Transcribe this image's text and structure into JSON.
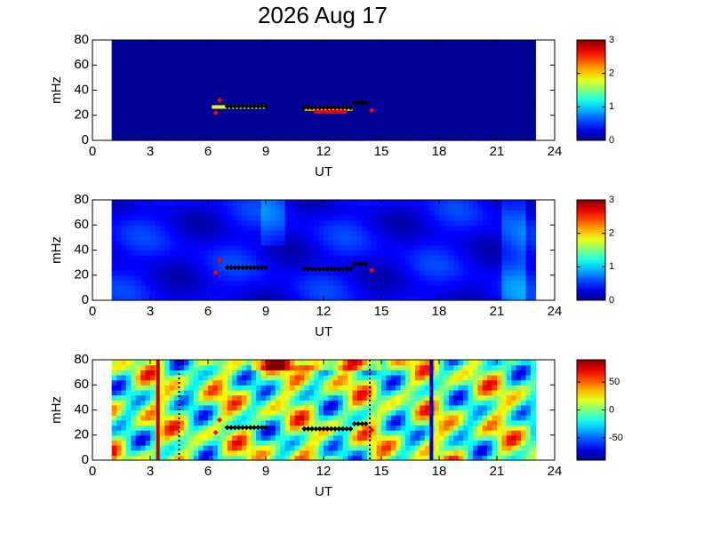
{
  "chart_data": [
    {
      "type": "spectrogram",
      "title": "2026 Aug 17",
      "xlabel": "UT",
      "ylabel": "mHz",
      "xlim": [
        0,
        24
      ],
      "xticks": [
        0,
        3,
        6,
        9,
        12,
        15,
        18,
        21,
        24
      ],
      "ylim": [
        0,
        80
      ],
      "yticks": [
        0,
        20,
        40,
        60,
        80
      ],
      "clim": [
        0,
        3
      ],
      "cticks": [
        0,
        1,
        2,
        3
      ],
      "data_xlim": [
        1,
        23
      ],
      "tracks": [
        {
          "color": "#000000",
          "x": [
            7.0,
            7.2,
            7.4,
            7.6,
            7.8,
            8.0,
            8.2,
            8.4,
            8.6,
            8.8,
            9.0,
            11.0,
            11.2,
            11.4,
            11.6,
            11.8,
            12.0,
            12.2,
            12.4,
            12.6,
            12.8,
            13.0,
            13.2,
            13.4,
            13.6,
            13.8,
            14.0,
            14.2
          ],
          "y": [
            27,
            27,
            27,
            27,
            27,
            27,
            27,
            27,
            27,
            27,
            27,
            26,
            26,
            26,
            26,
            26,
            26,
            26,
            26,
            26,
            26,
            26,
            26,
            26,
            30,
            30,
            30,
            30
          ]
        },
        {
          "color": "#ff0000",
          "x": [
            6.4,
            6.6,
            14.5
          ],
          "y": [
            22,
            32,
            24
          ]
        }
      ]
    },
    {
      "type": "spectrogram",
      "xlabel": "UT",
      "ylabel": "mHz",
      "xlim": [
        0,
        24
      ],
      "xticks": [
        0,
        3,
        6,
        9,
        12,
        15,
        18,
        21,
        24
      ],
      "ylim": [
        0,
        80
      ],
      "yticks": [
        0,
        20,
        40,
        60,
        80
      ],
      "clim": [
        0,
        3
      ],
      "cticks": [
        0,
        1,
        2,
        3
      ],
      "data_xlim": [
        1,
        23
      ],
      "tracks": [
        {
          "color": "#000000",
          "x": [
            7.0,
            7.2,
            7.4,
            7.6,
            7.8,
            8.0,
            8.2,
            8.4,
            8.6,
            8.8,
            9.0,
            11.0,
            11.2,
            11.4,
            11.6,
            11.8,
            12.0,
            12.2,
            12.4,
            12.6,
            12.8,
            13.0,
            13.2,
            13.4,
            13.6,
            13.8,
            14.0,
            14.2
          ],
          "y": [
            26,
            26,
            26,
            26,
            26,
            26,
            26,
            26,
            26,
            26,
            26,
            25,
            25,
            25,
            25,
            25,
            25,
            25,
            25,
            25,
            25,
            25,
            25,
            25,
            29,
            29,
            29,
            29
          ]
        },
        {
          "color": "#ff0000",
          "x": [
            6.4,
            6.6,
            14.5
          ],
          "y": [
            22,
            32,
            24
          ]
        }
      ]
    },
    {
      "type": "spectrogram",
      "xlabel": "UT",
      "ylabel": "mHz",
      "xlim": [
        0,
        24
      ],
      "xticks": [
        0,
        3,
        6,
        9,
        12,
        15,
        18,
        21,
        24
      ],
      "ylim": [
        0,
        80
      ],
      "yticks": [
        0,
        20,
        40,
        60,
        80
      ],
      "clim": [
        -90,
        90
      ],
      "cticks": [
        -50,
        0,
        50
      ],
      "data_xlim": [
        1,
        23
      ],
      "vlines": [
        {
          "x": 3.4,
          "color": "#c00000",
          "style": "solid"
        },
        {
          "x": 4.5,
          "color": "#000000",
          "style": "dotted"
        },
        {
          "x": 14.4,
          "color": "#000000",
          "style": "dotted"
        },
        {
          "x": 17.6,
          "color": "#0000c0",
          "style": "solid"
        }
      ],
      "tracks": [
        {
          "color": "#000000",
          "x": [
            7.0,
            7.2,
            7.4,
            7.6,
            7.8,
            8.0,
            8.2,
            8.4,
            8.6,
            8.8,
            9.0,
            11.0,
            11.2,
            11.4,
            11.6,
            11.8,
            12.0,
            12.2,
            12.4,
            12.6,
            12.8,
            13.0,
            13.2,
            13.4,
            13.6,
            13.8,
            14.0,
            14.2
          ],
          "y": [
            26,
            26,
            26,
            26,
            26,
            26,
            26,
            26,
            26,
            26,
            26,
            25,
            25,
            25,
            25,
            25,
            25,
            25,
            25,
            25,
            25,
            25,
            25,
            25,
            29,
            29,
            29,
            29
          ]
        },
        {
          "color": "#ff0000",
          "x": [
            6.4,
            6.6,
            14.5
          ],
          "y": [
            22,
            32,
            24
          ]
        }
      ]
    }
  ]
}
